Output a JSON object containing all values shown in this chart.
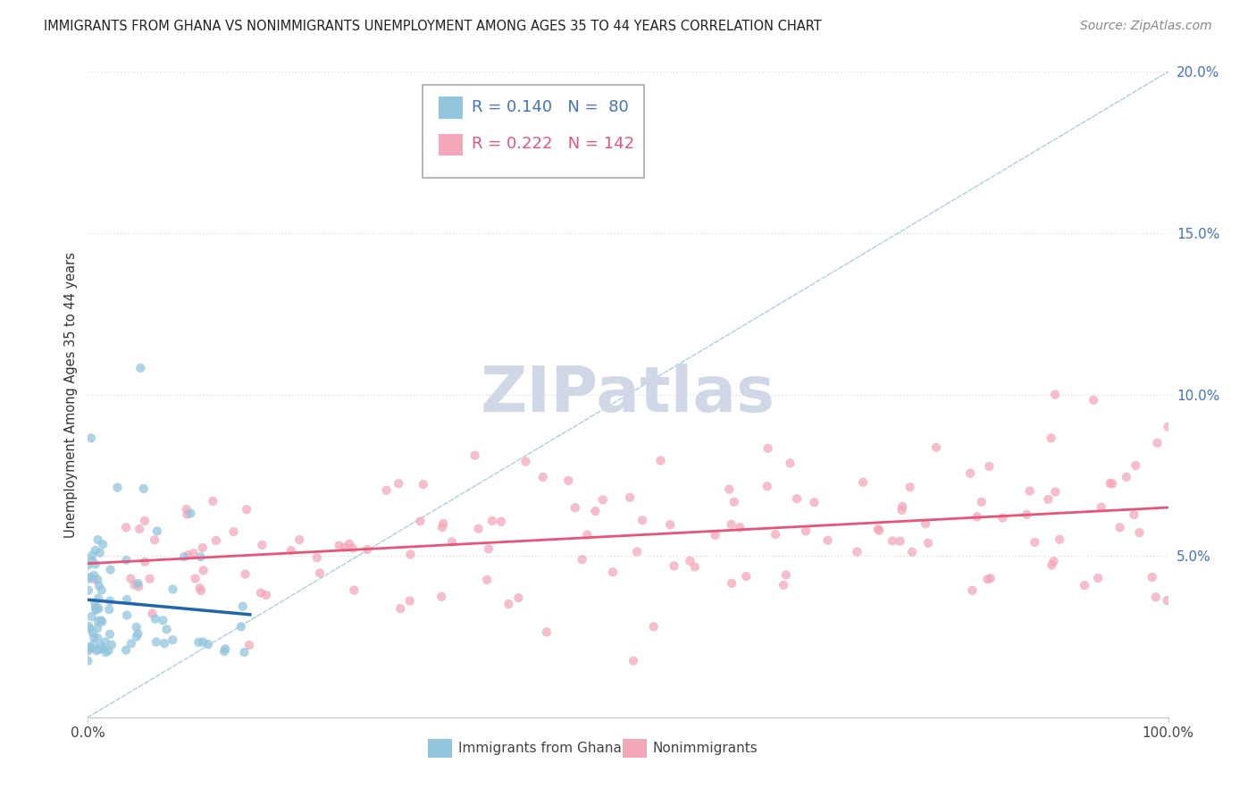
{
  "title": "IMMIGRANTS FROM GHANA VS NONIMMIGRANTS UNEMPLOYMENT AMONG AGES 35 TO 44 YEARS CORRELATION CHART",
  "source": "Source: ZipAtlas.com",
  "ylabel": "Unemployment Among Ages 35 to 44 years",
  "legend_1_label": "Immigrants from Ghana",
  "legend_1_R": "R = 0.140",
  "legend_1_N": "N =  80",
  "legend_2_label": "Nonimmigrants",
  "legend_2_R": "R = 0.222",
  "legend_2_N": "N = 142",
  "blue_color": "#92c5de",
  "pink_color": "#f4a7b9",
  "blue_line_color": "#2166ac",
  "pink_line_color": "#e8537a",
  "ref_line_color": "#9ecae1",
  "watermark_color": "#d0d8e8",
  "xmin": 0,
  "xmax": 100,
  "ymin": 0,
  "ymax": 20,
  "ytick_vals": [
    5,
    10,
    15,
    20
  ],
  "ytick_labels": [
    "5.0%",
    "10.0%",
    "15.0%",
    "20.0%"
  ],
  "ytick_color": "#4472c4",
  "grid_color": "#e0e0e0",
  "title_fontsize": 10.5,
  "source_fontsize": 10,
  "legend_fontsize": 13,
  "axis_tick_fontsize": 11
}
